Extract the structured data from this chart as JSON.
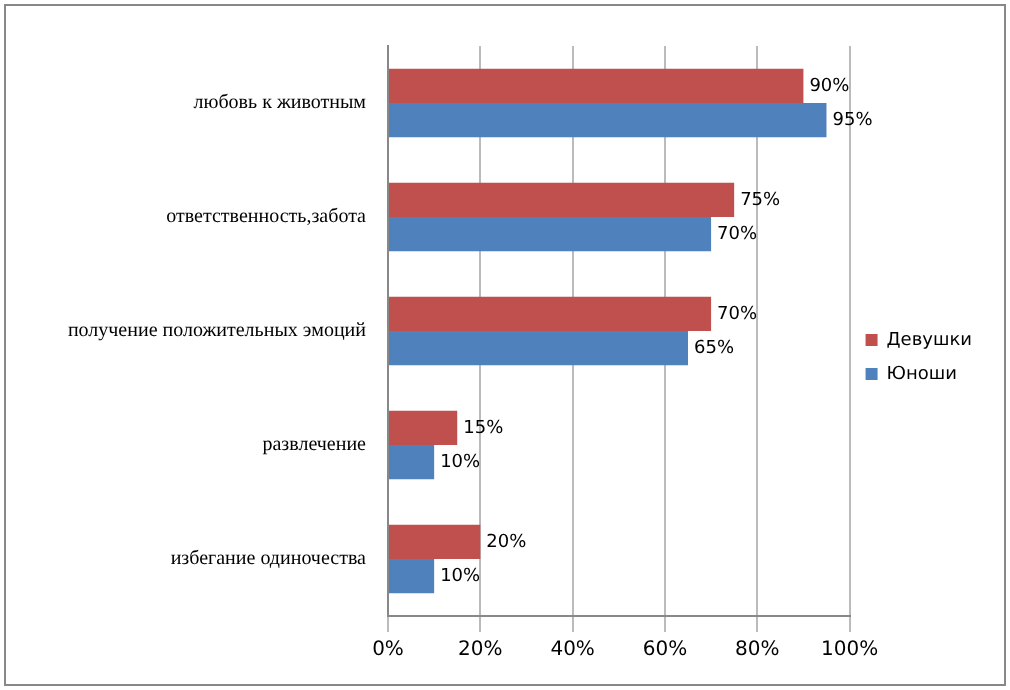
{
  "chart_data": {
    "type": "bar",
    "orientation": "horizontal",
    "categories": [
      "любовь к животным",
      "ответственность,забота",
      "получение положительных эмоций",
      "развлечение",
      "избегание одиночества"
    ],
    "series": [
      {
        "name": "Девушки",
        "color": "#c0504d",
        "values": [
          90,
          75,
          70,
          15,
          20
        ],
        "value_labels": [
          "90%",
          "75%",
          "70%",
          "15%",
          "20%"
        ]
      },
      {
        "name": "Юноши",
        "color": "#4f81bd",
        "values": [
          95,
          70,
          65,
          10,
          10
        ],
        "value_labels": [
          "95%",
          "70%",
          "65%",
          "10%",
          "10%"
        ]
      }
    ],
    "xlim": [
      0,
      100
    ],
    "xticks": [
      {
        "value": 0,
        "label": "0%"
      },
      {
        "value": 20,
        "label": "20%"
      },
      {
        "value": 40,
        "label": "40%"
      },
      {
        "value": 60,
        "label": "60%"
      },
      {
        "value": 80,
        "label": "80%"
      },
      {
        "value": 100,
        "label": "100%"
      }
    ],
    "grid": "x",
    "legend": "right"
  }
}
